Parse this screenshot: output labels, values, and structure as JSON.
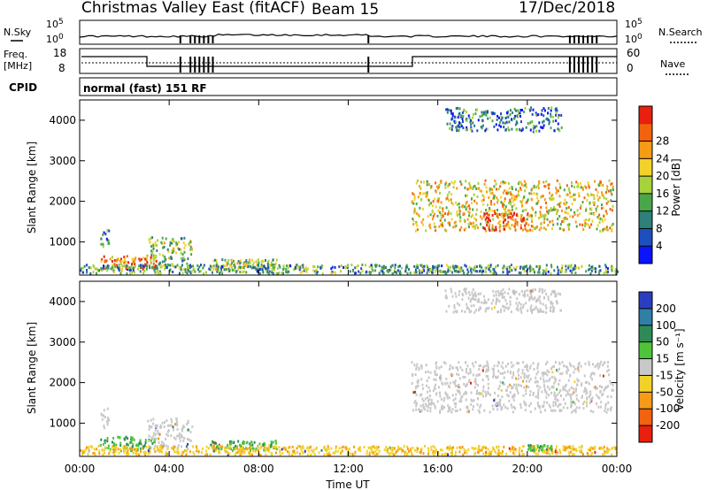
{
  "header": {
    "title": "Christmas Valley East (fitACF)",
    "beam": "Beam 15",
    "date": "17/Dec/2018"
  },
  "strip_labels": {
    "nsky": "N.Sky",
    "nsearch": "N.Search",
    "freq": "Freq.",
    "freq_unit": "[MHz]",
    "nave": "Nave",
    "cpid": "CPID",
    "cpid_text": "normal (fast) 151 RF"
  },
  "strip_ticks": {
    "noise_left": [
      "10^5",
      "10^0"
    ],
    "noise_right": [
      "10^5",
      "10^0"
    ],
    "freq_left": [
      "18",
      "8"
    ],
    "nave_right": [
      "60",
      "0"
    ]
  },
  "chart_data": [
    {
      "type": "heatmap",
      "name": "power",
      "ylabel": "Slant Range [km]",
      "xlabel": "",
      "x_ticks": [
        "00:00",
        "04:00",
        "08:00",
        "12:00",
        "16:00",
        "20:00",
        "00:00"
      ],
      "y_ticks": [
        1000,
        2000,
        3000,
        4000
      ],
      "ylim": [
        180,
        4500
      ],
      "xlim_hours": [
        0,
        24
      ],
      "colorbar": {
        "label": "Power [dB]",
        "ticks": [
          "4",
          "8",
          "12",
          "16",
          "20",
          "24",
          "28"
        ],
        "range": [
          0,
          30
        ],
        "colors": [
          "#0a14ff",
          "#1d4fbf",
          "#2f7f7a",
          "#4aa64a",
          "#a6d23c",
          "#f2d22a",
          "#f59b16",
          "#f2620f",
          "#e8200d"
        ]
      },
      "regions": [
        {
          "t0": 0.9,
          "t1": 3.4,
          "r0": 300,
          "r1": 650,
          "level": 0.75
        },
        {
          "t0": 0.9,
          "t1": 1.3,
          "r0": 850,
          "r1": 1350,
          "level": 0.3
        },
        {
          "t0": 3.0,
          "t1": 5.0,
          "r0": 350,
          "r1": 1100,
          "level": 0.45
        },
        {
          "t0": 5.8,
          "t1": 8.8,
          "r0": 300,
          "r1": 550,
          "level": 0.5
        },
        {
          "t0": 0.0,
          "t1": 24.0,
          "r0": 200,
          "r1": 420,
          "level": 0.35
        },
        {
          "t0": 14.8,
          "t1": 23.8,
          "r0": 1250,
          "r1": 2500,
          "level": 0.6
        },
        {
          "t0": 18.0,
          "t1": 20.0,
          "r0": 1250,
          "r1": 1700,
          "level": 0.9
        },
        {
          "t0": 16.3,
          "t1": 21.5,
          "r0": 3700,
          "r1": 4300,
          "level": 0.25
        }
      ]
    },
    {
      "type": "heatmap",
      "name": "velocity",
      "ylabel": "Slant Range [km]",
      "xlabel": "Time UT",
      "x_ticks": [
        "00:00",
        "04:00",
        "08:00",
        "12:00",
        "16:00",
        "20:00",
        "00:00"
      ],
      "y_ticks": [
        1000,
        2000,
        3000,
        4000
      ],
      "ylim": [
        180,
        4500
      ],
      "xlim_hours": [
        0,
        24
      ],
      "colorbar": {
        "label": "Velocity [m s⁻¹]",
        "ticks": [
          "200",
          "100",
          "50",
          "15",
          "-15",
          "-50",
          "-100",
          "-200"
        ],
        "colors": [
          "#2a3fbf",
          "#2f7fa6",
          "#2e8b57",
          "#4fc43a",
          "#c8c8c8",
          "#f2d22a",
          "#f59b16",
          "#f2620f",
          "#e8200d"
        ]
      },
      "regions": [
        {
          "t0": 0.9,
          "t1": 3.4,
          "r0": 300,
          "r1": 650,
          "vel": "green"
        },
        {
          "t0": 0.9,
          "t1": 1.3,
          "r0": 850,
          "r1": 1350,
          "vel": "grey"
        },
        {
          "t0": 3.0,
          "t1": 5.0,
          "r0": 350,
          "r1": 1100,
          "vel": "grey"
        },
        {
          "t0": 5.8,
          "t1": 8.8,
          "r0": 300,
          "r1": 550,
          "vel": "green"
        },
        {
          "t0": 0.0,
          "t1": 24.0,
          "r0": 200,
          "r1": 420,
          "vel": "orange"
        },
        {
          "t0": 14.8,
          "t1": 23.8,
          "r0": 1250,
          "r1": 2500,
          "vel": "grey"
        },
        {
          "t0": 20.0,
          "t1": 21.2,
          "r0": 300,
          "r1": 450,
          "vel": "green"
        },
        {
          "t0": 16.3,
          "t1": 21.5,
          "r0": 3700,
          "r1": 4300,
          "vel": "grey"
        }
      ]
    }
  ]
}
